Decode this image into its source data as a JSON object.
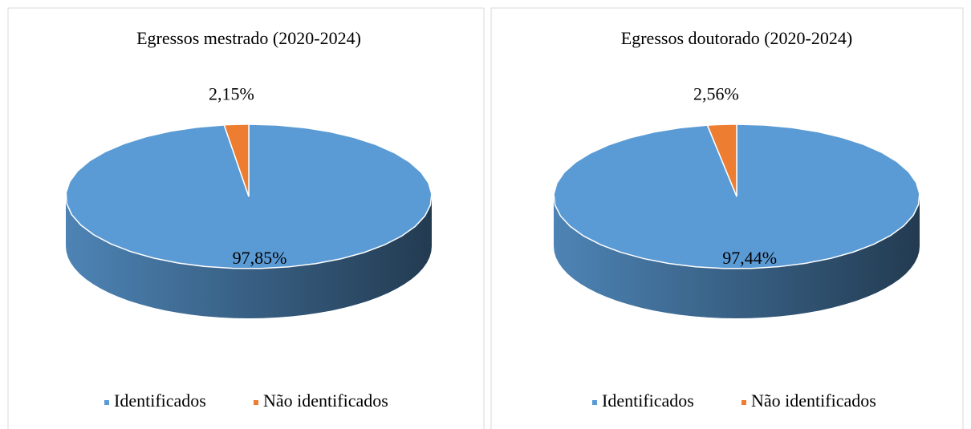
{
  "chart_data": [
    {
      "type": "pie",
      "title": "Egressos mestrado (2020-2024)",
      "categories": [
        "Identificados",
        "Não identificados"
      ],
      "values": [
        97.85,
        2.15
      ],
      "value_labels": [
        "97,85%",
        "2,15%"
      ],
      "colors": [
        "#5b9bd5",
        "#ed7d31"
      ],
      "legend": "bottom"
    },
    {
      "type": "pie",
      "title": "Egressos doutorado (2020-2024)",
      "categories": [
        "Identificados",
        "Não identificados"
      ],
      "values": [
        97.44,
        2.56
      ],
      "value_labels": [
        "97,44%",
        "2,56%"
      ],
      "colors": [
        "#5b9bd5",
        "#ed7d31"
      ],
      "legend": "bottom"
    }
  ]
}
